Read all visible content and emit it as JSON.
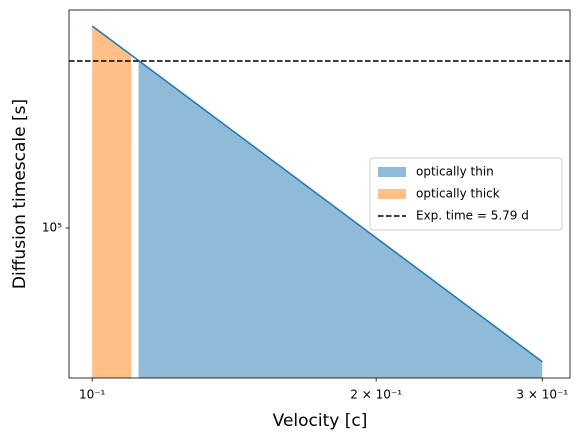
{
  "chart_data": {
    "type": "area-line",
    "xlabel": "Velocity [c]",
    "ylabel": "Diffusion timescale [s]",
    "xscale": "log",
    "yscale": "log",
    "xlim": [
      0.0945,
      0.321
    ],
    "ylim": [
      32200,
      519000
    ],
    "xticks": [
      {
        "value": 0.1,
        "label": "10⁻¹"
      },
      {
        "value": 0.2,
        "label": "2 × 10⁻¹"
      },
      {
        "value": 0.3,
        "label": "3 × 10⁻¹"
      }
    ],
    "yticks": [
      {
        "value": 100000,
        "label": "10⁵"
      }
    ],
    "line": {
      "color": "#1f77b4",
      "x": [
        0.1,
        0.3
      ],
      "values": [
        460000,
        36400
      ]
    },
    "series": [
      {
        "name": "optically thin",
        "kind": "area",
        "color": "#8fbbd9",
        "x": [
          0.112,
          0.3
        ],
        "values": [
          354000,
          36400
        ]
      },
      {
        "name": "optically thick",
        "kind": "area",
        "color": "#ffbf86",
        "x": [
          0.1,
          0.11
        ],
        "values": [
          460000,
          369000
        ]
      },
      {
        "name": "Exp. time =  5.79 d",
        "kind": "hline",
        "color": "#000000",
        "values": [
          353000
        ]
      }
    ],
    "legend": "center right"
  }
}
